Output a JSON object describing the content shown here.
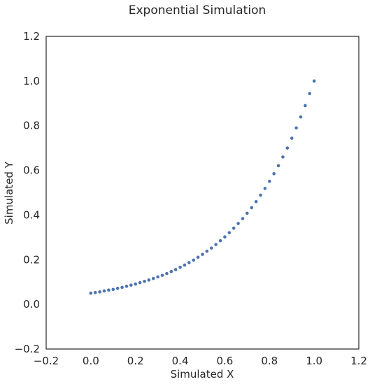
{
  "chart_data": {
    "type": "scatter",
    "title": "Exponential Simulation",
    "xlabel": "Simulated X",
    "ylabel": "Simulated Y",
    "xlim": [
      -0.2,
      1.2
    ],
    "ylim": [
      -0.2,
      1.2
    ],
    "xticks": [
      -0.2,
      0.0,
      0.2,
      0.4,
      0.6,
      0.8,
      1.0,
      1.2
    ],
    "yticks": [
      -0.2,
      0.0,
      0.2,
      0.4,
      0.6,
      0.8,
      1.0,
      1.2
    ],
    "xtick_labels": [
      "−0.2",
      "0.0",
      "0.2",
      "0.4",
      "0.6",
      "0.8",
      "1.0",
      "1.2"
    ],
    "ytick_labels": [
      "−0.2",
      "0.0",
      "0.2",
      "0.4",
      "0.6",
      "0.8",
      "1.0",
      "1.2"
    ],
    "grid": false,
    "marker_color": "#4c72b0",
    "series": [
      {
        "x": [
          0.0,
          0.02,
          0.04,
          0.06,
          0.08,
          0.1,
          0.12,
          0.14,
          0.16,
          0.18,
          0.2,
          0.22,
          0.24,
          0.26,
          0.28,
          0.3,
          0.32,
          0.34,
          0.36,
          0.38,
          0.4,
          0.42,
          0.44,
          0.46,
          0.48,
          0.5,
          0.52,
          0.54,
          0.56,
          0.58,
          0.6,
          0.62,
          0.64,
          0.66,
          0.68,
          0.7,
          0.72,
          0.74,
          0.76,
          0.78,
          0.8,
          0.82,
          0.84,
          0.86,
          0.88,
          0.9,
          0.92,
          0.94,
          0.96,
          0.98,
          1.0
        ],
        "y": [
          0.05,
          0.053,
          0.056,
          0.06,
          0.064,
          0.067,
          0.072,
          0.076,
          0.081,
          0.086,
          0.091,
          0.097,
          0.103,
          0.109,
          0.116,
          0.123,
          0.13,
          0.138,
          0.147,
          0.156,
          0.166,
          0.176,
          0.187,
          0.198,
          0.211,
          0.224,
          0.238,
          0.252,
          0.268,
          0.285,
          0.302,
          0.321,
          0.341,
          0.362,
          0.384,
          0.408,
          0.433,
          0.46,
          0.489,
          0.519,
          0.551,
          0.585,
          0.621,
          0.66,
          0.7,
          0.744,
          0.79,
          0.839,
          0.89,
          0.944,
          1.0
        ]
      }
    ]
  }
}
